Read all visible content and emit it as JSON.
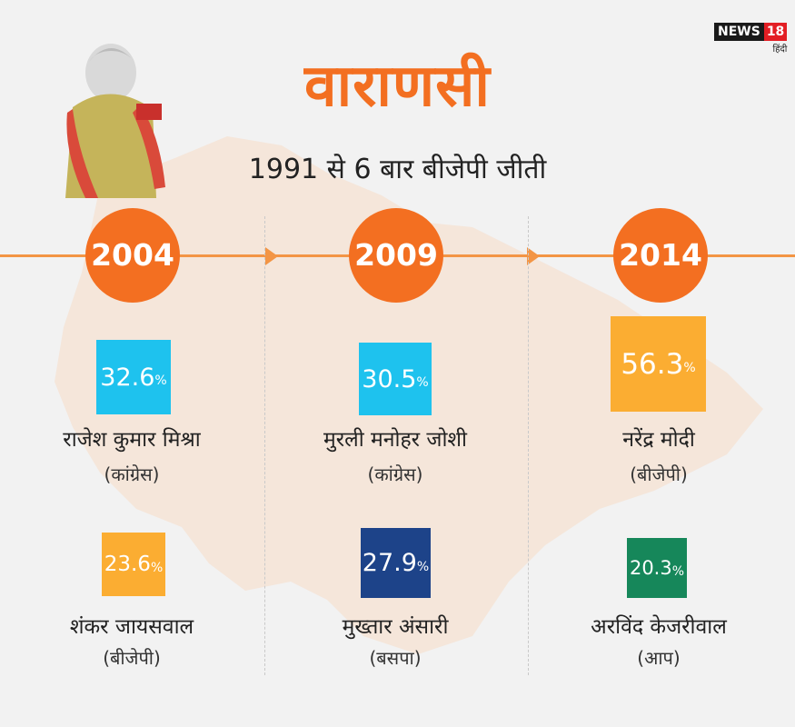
{
  "title": "वाराणसी",
  "subtitle": "1991 से 6 बार बीजेपी जीती",
  "logo": {
    "main": "NEWS",
    "num": "18",
    "sub": "हिंदी"
  },
  "pct_sign": "%",
  "columns": [
    {
      "year": "2004",
      "winner": {
        "value": "32.6",
        "name": "राजेश कुमार मिश्रा",
        "party": "(कांग्रेस)",
        "color": "#1ec2ee"
      },
      "runner": {
        "value": "23.6",
        "name": "शंकर जायसवाल",
        "party": "(बीजेपी)",
        "color": "#fbad32"
      }
    },
    {
      "year": "2009",
      "winner": {
        "value": "30.5",
        "name": "मुरली मनोहर जोशी",
        "party": "(कांग्रेस)",
        "color": "#1ec2ee"
      },
      "runner": {
        "value": "27.9",
        "name": "मुख्तार अंसारी",
        "party": "(बसपा)",
        "color": "#1d4389"
      }
    },
    {
      "year": "2014",
      "winner": {
        "value": "56.3",
        "name": "नरेंद्र मोदी",
        "party": "(बीजेपी)",
        "color": "#fbad32"
      },
      "runner": {
        "value": "20.3",
        "name": "अरविंद केजरीवाल",
        "party": "(आप)",
        "color": "#16875a"
      }
    }
  ],
  "colors": {
    "accent": "#f36f21",
    "timeline": "#f39545",
    "map": "#f6e2d2"
  }
}
